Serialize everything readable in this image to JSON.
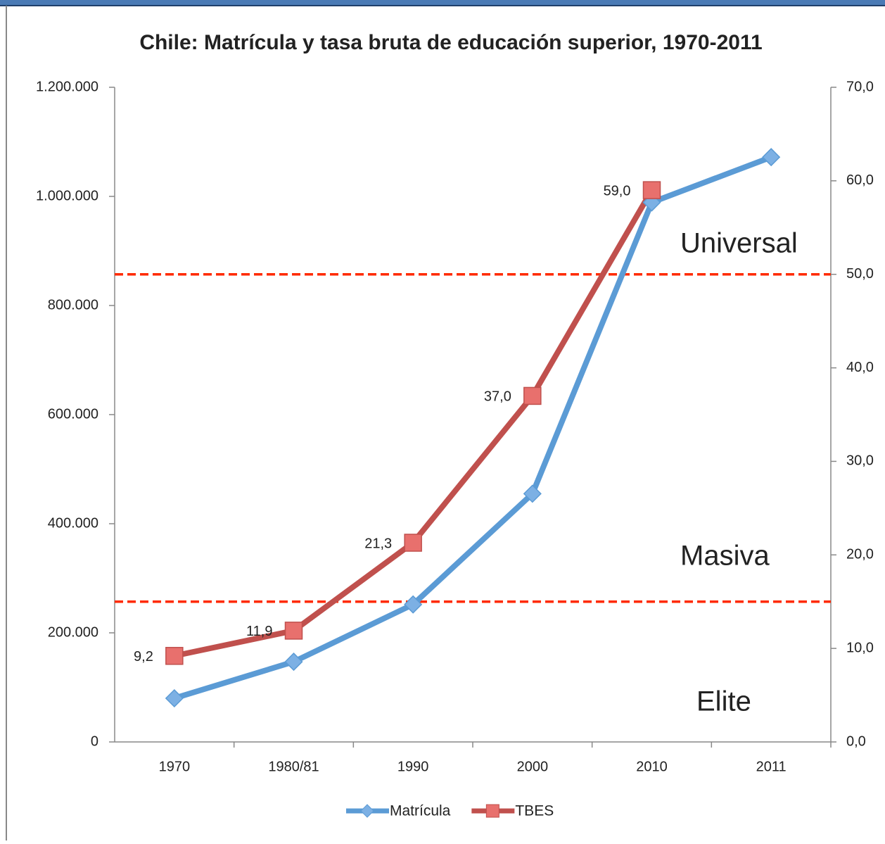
{
  "chart_data": {
    "type": "line",
    "title": "Chile: Matrícula y tasa bruta de educación superior, 1970-2011",
    "categories": [
      "1970",
      "1980/81",
      "1990",
      "2000",
      "2010",
      "2011"
    ],
    "series": [
      {
        "name": "Matrícula",
        "color": "#5b9bd5",
        "marker": "diamond",
        "values": [
          80000,
          147000,
          252000,
          455000,
          989000,
          1072000
        ]
      },
      {
        "name": "TBES",
        "color": "#c0504d",
        "marker": "square",
        "axis": "y2",
        "values": [
          9.2,
          11.9,
          21.3,
          37.0,
          59.0,
          null
        ],
        "value_labels": [
          "9,2",
          "11,9",
          "21,3",
          "37,0",
          "59,0",
          null
        ]
      }
    ],
    "ylim": [
      0,
      1200000
    ],
    "yticks": [
      0,
      {
        "value": 200000,
        "label": "200.000"
      },
      {
        "value": 400000,
        "label": "400.000"
      },
      {
        "value": 600000,
        "label": "600.000"
      },
      {
        "value": 800000,
        "label": "800.000"
      },
      {
        "value": 1000000,
        "label": "1.000.000"
      },
      {
        "value": 1200000,
        "label": "1.200.000"
      }
    ],
    "y2lim": [
      0,
      70
    ],
    "y2ticks": [
      {
        "value": 0,
        "label": "0,0"
      },
      {
        "value": 10,
        "label": "10,0"
      },
      {
        "value": 20,
        "label": "20,0"
      },
      {
        "value": 30,
        "label": "30,0"
      },
      {
        "value": 40,
        "label": "40,0"
      },
      {
        "value": 50,
        "label": "50,0"
      },
      {
        "value": 60,
        "label": "60,0"
      },
      {
        "value": 70,
        "label": "70,0"
      }
    ],
    "thresholds": [
      {
        "value": 15,
        "axis": "y2",
        "color": "#ff2a00"
      },
      {
        "value": 50,
        "axis": "y2",
        "color": "#ff2a00"
      }
    ],
    "annotations": [
      "Universal",
      "Masiva",
      "Elite"
    ],
    "legend": "bottom"
  }
}
